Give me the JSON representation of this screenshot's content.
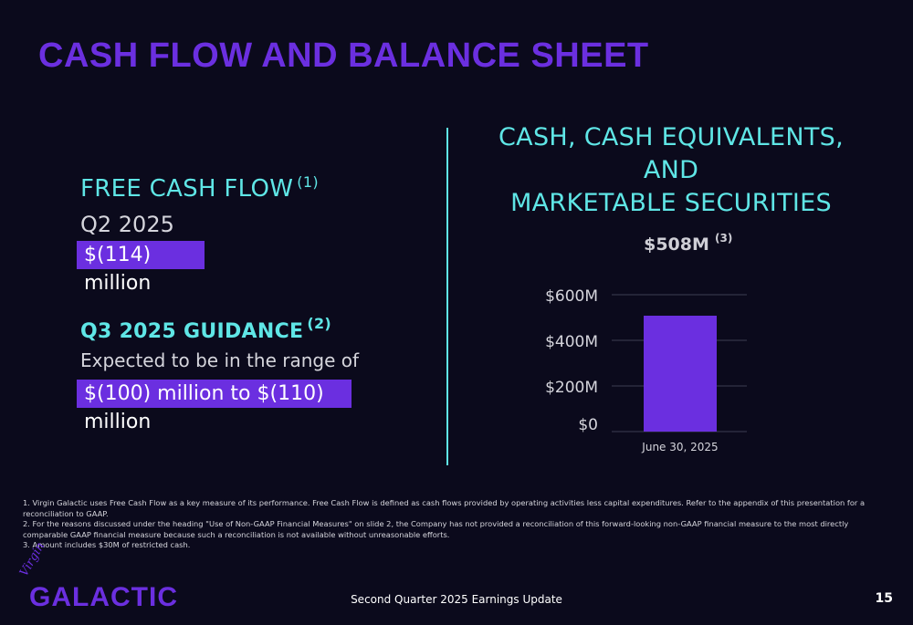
{
  "title": "CASH FLOW AND BALANCE SHEET",
  "left": {
    "fcf_heading": "FREE CASH FLOW",
    "fcf_note": "(1)",
    "period": "Q2 2025",
    "fcf_value": "$(114) million",
    "guidance_heading": "Q3 2025 GUIDANCE",
    "guidance_note": "(2)",
    "guidance_text": "Expected to be in the range of",
    "guidance_value": "$(100) million to $(110) million"
  },
  "right": {
    "heading_line1": "CASH, CASH EQUIVALENTS, AND",
    "heading_line2": "MARKETABLE SECURITIES"
  },
  "chart_data": {
    "type": "bar",
    "categories": [
      "June 30, 2025"
    ],
    "values": [
      508
    ],
    "data_label": "$508M",
    "data_label_note": "(3)",
    "ytick_labels": [
      "$0",
      "$200M",
      "$400M",
      "$600M"
    ],
    "yticks": [
      0,
      200,
      400,
      600
    ],
    "ylim": [
      0,
      600
    ],
    "grid": true,
    "bar_color": "#6b2fe0"
  },
  "footnotes": [
    "1. Virgin Galactic uses Free Cash Flow as a key measure of its performance. Free Cash Flow is defined as cash flows provided by operating activities less capital expenditures. Refer to the appendix of this presentation for a reconciliation to GAAP.",
    "2. For the reasons discussed under the heading \"Use of Non-GAAP Financial Measures\" on slide 2, the Company has not provided a reconciliation of this forward-looking non-GAAP financial measure to the most directly comparable GAAP financial measure because such a  reconciliation is not available without unreasonable efforts.",
    "3. Amount includes $30M of restricted cash."
  ],
  "footer": {
    "logo_script": "Virgin",
    "logo_word": "GALACTIC",
    "center_text": "Second Quarter 2025 Earnings Update",
    "page_number": "15"
  },
  "colors": {
    "background": "#0b0a1c",
    "brand_purple": "#6b2fe0",
    "accent_cyan": "#5fe6e6"
  }
}
